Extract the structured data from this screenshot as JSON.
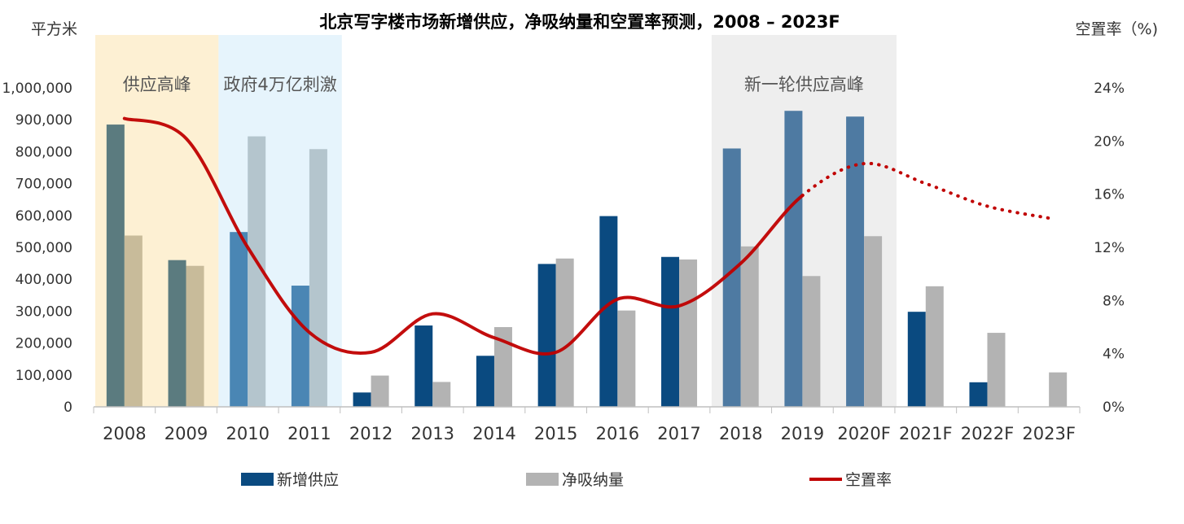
{
  "chart_data": {
    "type": "bar",
    "title": "北京写字楼市场新增供应，净吸纳量和空置率预测，2008 – 2023F",
    "ylabel_left": "平方米",
    "ylabel_right": "空置率（%)",
    "categories": [
      "2008",
      "2009",
      "2010",
      "2011",
      "2012",
      "2013",
      "2014",
      "2015",
      "2016",
      "2017",
      "2018",
      "2019",
      "2020F",
      "2021F",
      "2022F",
      "2023F"
    ],
    "y_left_ticks": [
      "0",
      "100,000",
      "200,000",
      "300,000",
      "400,000",
      "500,000",
      "600,000",
      "700,000",
      "800,000",
      "900,000",
      "1,000,000"
    ],
    "y_left_lim": [
      0,
      1000000
    ],
    "y_right_ticks": [
      "0%",
      "4%",
      "8%",
      "12%",
      "16%",
      "20%",
      "24%"
    ],
    "y_right_lim": [
      0,
      24
    ],
    "series": [
      {
        "name": "新增供应",
        "type": "bar",
        "color": "#0a4a80",
        "values": [
          885000,
          460000,
          548000,
          380000,
          45000,
          255000,
          160000,
          448000,
          598000,
          470000,
          810000,
          928000,
          910000,
          298000,
          77000,
          0
        ]
      },
      {
        "name": "净吸纳量",
        "type": "bar",
        "color": "#b3b3b3",
        "values": [
          537000,
          442000,
          848000,
          808000,
          98000,
          78000,
          250000,
          465000,
          302000,
          462000,
          503000,
          410000,
          535000,
          378000,
          232000,
          108000
        ]
      },
      {
        "name": "空置率",
        "type": "line",
        "color": "#c00000",
        "values": [
          21.7,
          20.2,
          12.0,
          5.6,
          4.1,
          7.0,
          5.2,
          4.1,
          8.1,
          7.6,
          10.8,
          15.9,
          18.3,
          16.8,
          15.1,
          14.2
        ],
        "forecast_from_index": 11
      }
    ],
    "bands": [
      {
        "label": "供应高峰",
        "from": "2008",
        "to": "2009",
        "color": "#fdf0d3"
      },
      {
        "label": "政府4万亿刺激",
        "from": "2010",
        "to": "2011",
        "color": "#e6f4fc"
      },
      {
        "label": "新一轮供应高峰",
        "from": "2018",
        "to": "2020F",
        "color": "#eeeeee"
      }
    ],
    "legend_position": "bottom",
    "grid": false
  }
}
